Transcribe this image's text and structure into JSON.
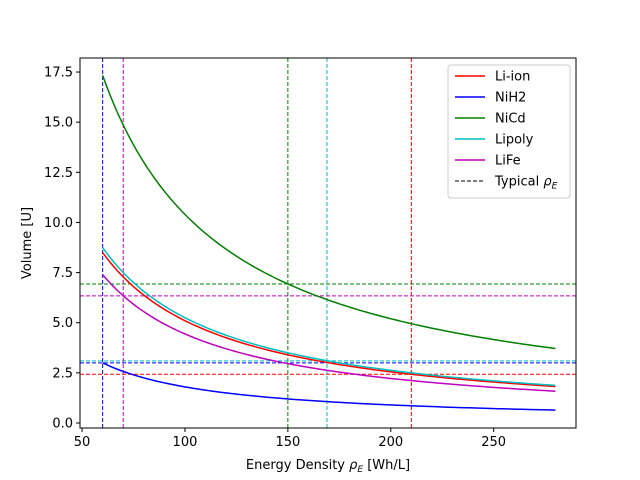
{
  "chart_data": {
    "type": "line",
    "title": "",
    "xlabel_main": "Energy Density ",
    "xlabel_sym": "ρ",
    "xlabel_sub": "E",
    "xlabel_unit": " [Wh/L]",
    "ylabel": "Volume [U]",
    "xlim": [
      49,
      290
    ],
    "ylim": [
      -0.25,
      18.2
    ],
    "xticks": [
      50,
      100,
      150,
      200,
      250
    ],
    "yticks": [
      0.0,
      2.5,
      5.0,
      7.5,
      10.0,
      12.5,
      15.0,
      17.5
    ],
    "ytick_labels": [
      "0.0",
      "2.5",
      "5.0",
      "7.5",
      "10.0",
      "12.5",
      "15.0",
      "17.5"
    ],
    "grid": false,
    "legend_position": "top-right",
    "x_domain": [
      60,
      280
    ],
    "series": [
      {
        "name": "Li-ion",
        "color": "#ff0000",
        "k": 510,
        "typical_density": 210,
        "typical_volume": 2.43
      },
      {
        "name": "NiH2",
        "color": "#0000ff",
        "k": 180,
        "typical_density": 60,
        "typical_volume": 3.0
      },
      {
        "name": "NiCd",
        "color": "#008000",
        "k": 1040,
        "typical_density": 150,
        "typical_volume": 6.93
      },
      {
        "name": "Lipoly",
        "color": "#00bfbf",
        "k": 525,
        "typical_density": 169,
        "typical_volume": 3.1
      },
      {
        "name": "LiFe",
        "color": "#bf00bf",
        "k": 444,
        "typical_density": 70,
        "typical_volume": 6.34
      }
    ],
    "legend_typical_main": "Typical ",
    "legend_typical_sym": "ρ",
    "legend_typical_sub": "E"
  }
}
